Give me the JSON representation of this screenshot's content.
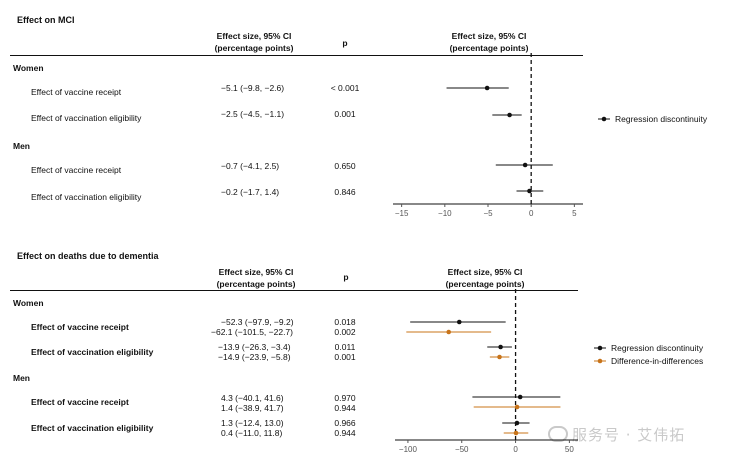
{
  "panel1": {
    "title": "Effect on MCI",
    "col_es_line1": "Effect size, 95% CI",
    "col_es_line2": "(percentage points)",
    "col_p": "p",
    "plot_header_line1": "Effect size, 95% CI",
    "plot_header_line2": "(percentage points)",
    "groups": [
      {
        "label": "Women",
        "rows": [
          {
            "label": "Effect of vaccine receipt",
            "es": "−5.1 (−9.8, −2.6)",
            "p": "< 0.001"
          },
          {
            "label": "Effect of vaccination eligibility",
            "es": "−2.5 (−4.5, −1.1)",
            "p": "0.001"
          }
        ]
      },
      {
        "label": "Men",
        "rows": [
          {
            "label": "Effect of vaccine receipt",
            "es": "−0.7 (−4.1,  2.5)",
            "p": "0.650"
          },
          {
            "label": "Effect of vaccination eligibility",
            "es": "−0.2 (−1.7,  1.4)",
            "p": "0.846"
          }
        ]
      }
    ],
    "legend": [
      {
        "label": "Regression discontinuity",
        "color": "#111111"
      }
    ]
  },
  "panel2": {
    "title": "Effect on deaths due to dementia",
    "col_es_line1": "Effect size, 95% CI",
    "col_es_line2": "(percentage points)",
    "col_p": "p",
    "plot_header_line1": "Effect size, 95% CI",
    "plot_header_line2": "(percentage points)",
    "groups": [
      {
        "label": "Women",
        "rows": [
          {
            "label": "Effect of vaccine receipt",
            "es": [
              "−52.3 (−97.9,  −9.2)",
              "−62.1 (−101.5, −22.7)"
            ],
            "p": [
              "0.018",
              "0.002"
            ]
          },
          {
            "label": "Effect of vaccination eligibility",
            "es": [
              "−13.9 (−26.3,  −3.4)",
              "−14.9 (−23.9,  −5.8)"
            ],
            "p": [
              "0.011",
              "0.001"
            ]
          }
        ]
      },
      {
        "label": "Men",
        "rows": [
          {
            "label": "Effect of vaccine receipt",
            "es": [
              "4.3 (−40.1,  41.6)",
              "1.4 (−38.9,  41.7)"
            ],
            "p": [
              "0.970",
              "0.944"
            ]
          },
          {
            "label": "Effect of vaccination eligibility",
            "es": [
              "1.3 (−12.4,  13.0)",
              "0.4 (−11.0,  11.8)"
            ],
            "p": [
              "0.966",
              "0.944"
            ]
          }
        ]
      }
    ],
    "legend": [
      {
        "label": "Regression discontinuity",
        "color": "#111111"
      },
      {
        "label": "Difference-in-differences",
        "color": "#c8741a"
      }
    ]
  },
  "watermark": "服务号 · 艾伟拓",
  "chart_data": [
    {
      "type": "forest",
      "title": "Effect on MCI",
      "xlabel": "Effect size, 95% CI (percentage points)",
      "xlim": [
        -16,
        6
      ],
      "xticks": [
        -15,
        -10,
        -5,
        0,
        5
      ],
      "reference_line": 0,
      "series": [
        {
          "name": "Regression discontinuity",
          "color": "#111111",
          "points": [
            {
              "group": "Women",
              "row": "Effect of vaccine receipt",
              "est": -5.1,
              "lo": -9.8,
              "hi": -2.6
            },
            {
              "group": "Women",
              "row": "Effect of vaccination eligibility",
              "est": -2.5,
              "lo": -4.5,
              "hi": -1.1
            },
            {
              "group": "Men",
              "row": "Effect of vaccine receipt",
              "est": -0.7,
              "lo": -4.1,
              "hi": 2.5
            },
            {
              "group": "Men",
              "row": "Effect of vaccination eligibility",
              "est": -0.2,
              "lo": -1.7,
              "hi": 1.4
            }
          ]
        }
      ]
    },
    {
      "type": "forest",
      "title": "Effect on deaths due to dementia",
      "xlabel": "Effect size, 95% CI (percentage points)",
      "xlim": [
        -112,
        58
      ],
      "xticks": [
        -100,
        -50,
        0,
        50
      ],
      "reference_line": 0,
      "series": [
        {
          "name": "Regression discontinuity",
          "color": "#111111",
          "points": [
            {
              "group": "Women",
              "row": "Effect of vaccine receipt",
              "est": -52.3,
              "lo": -97.9,
              "hi": -9.2
            },
            {
              "group": "Women",
              "row": "Effect of vaccination eligibility",
              "est": -13.9,
              "lo": -26.3,
              "hi": -3.4
            },
            {
              "group": "Men",
              "row": "Effect of vaccine receipt",
              "est": 4.3,
              "lo": -40.1,
              "hi": 41.6
            },
            {
              "group": "Men",
              "row": "Effect of vaccination eligibility",
              "est": 1.3,
              "lo": -12.4,
              "hi": 13.0
            }
          ]
        },
        {
          "name": "Difference-in-differences",
          "color": "#c8741a",
          "points": [
            {
              "group": "Women",
              "row": "Effect of vaccine receipt",
              "est": -62.1,
              "lo": -101.5,
              "hi": -22.7
            },
            {
              "group": "Women",
              "row": "Effect of vaccination eligibility",
              "est": -14.9,
              "lo": -23.9,
              "hi": -5.8
            },
            {
              "group": "Men",
              "row": "Effect of vaccine receipt",
              "est": 1.4,
              "lo": -38.9,
              "hi": 41.7
            },
            {
              "group": "Men",
              "row": "Effect of vaccination eligibility",
              "est": 0.4,
              "lo": -11.0,
              "hi": 11.8
            }
          ]
        }
      ]
    }
  ]
}
